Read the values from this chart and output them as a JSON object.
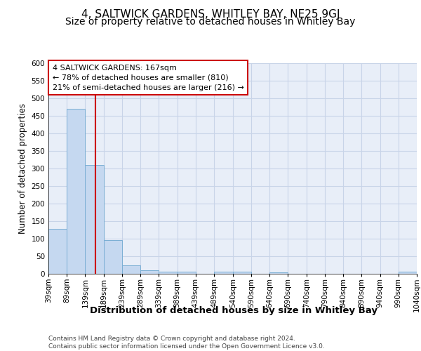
{
  "title": "4, SALTWICK GARDENS, WHITLEY BAY, NE25 9GJ",
  "subtitle": "Size of property relative to detached houses in Whitley Bay",
  "xlabel": "Distribution of detached houses by size in Whitley Bay",
  "ylabel": "Number of detached properties",
  "footer_line1": "Contains HM Land Registry data © Crown copyright and database right 2024.",
  "footer_line2": "Contains public sector information licensed under the Open Government Licence v3.0.",
  "annotation_title": "4 SALTWICK GARDENS: 167sqm",
  "annotation_line1": "← 78% of detached houses are smaller (810)",
  "annotation_line2": "21% of semi-detached houses are larger (216) →",
  "red_line_x": 167,
  "bar_edges": [
    39,
    89,
    139,
    189,
    239,
    289,
    339,
    389,
    439,
    489,
    540,
    590,
    640,
    690,
    740,
    790,
    840,
    890,
    940,
    990,
    1040
  ],
  "bar_heights": [
    128,
    470,
    310,
    97,
    25,
    11,
    6,
    6,
    0,
    6,
    6,
    0,
    5,
    0,
    0,
    0,
    0,
    0,
    0,
    6
  ],
  "bar_color": "#c5d8f0",
  "bar_edge_color": "#7aaed4",
  "red_line_color": "#cc0000",
  "grid_color": "#c8d4e8",
  "bg_color": "#e8eef8",
  "annotation_box_color": "#ffffff",
  "annotation_box_edge_color": "#cc0000",
  "ylim": [
    0,
    600
  ],
  "yticks": [
    0,
    50,
    100,
    150,
    200,
    250,
    300,
    350,
    400,
    450,
    500,
    550,
    600
  ],
  "title_fontsize": 11,
  "subtitle_fontsize": 10,
  "xlabel_fontsize": 9.5,
  "ylabel_fontsize": 8.5,
  "tick_fontsize": 7.5,
  "annotation_fontsize": 8,
  "footer_fontsize": 6.5
}
